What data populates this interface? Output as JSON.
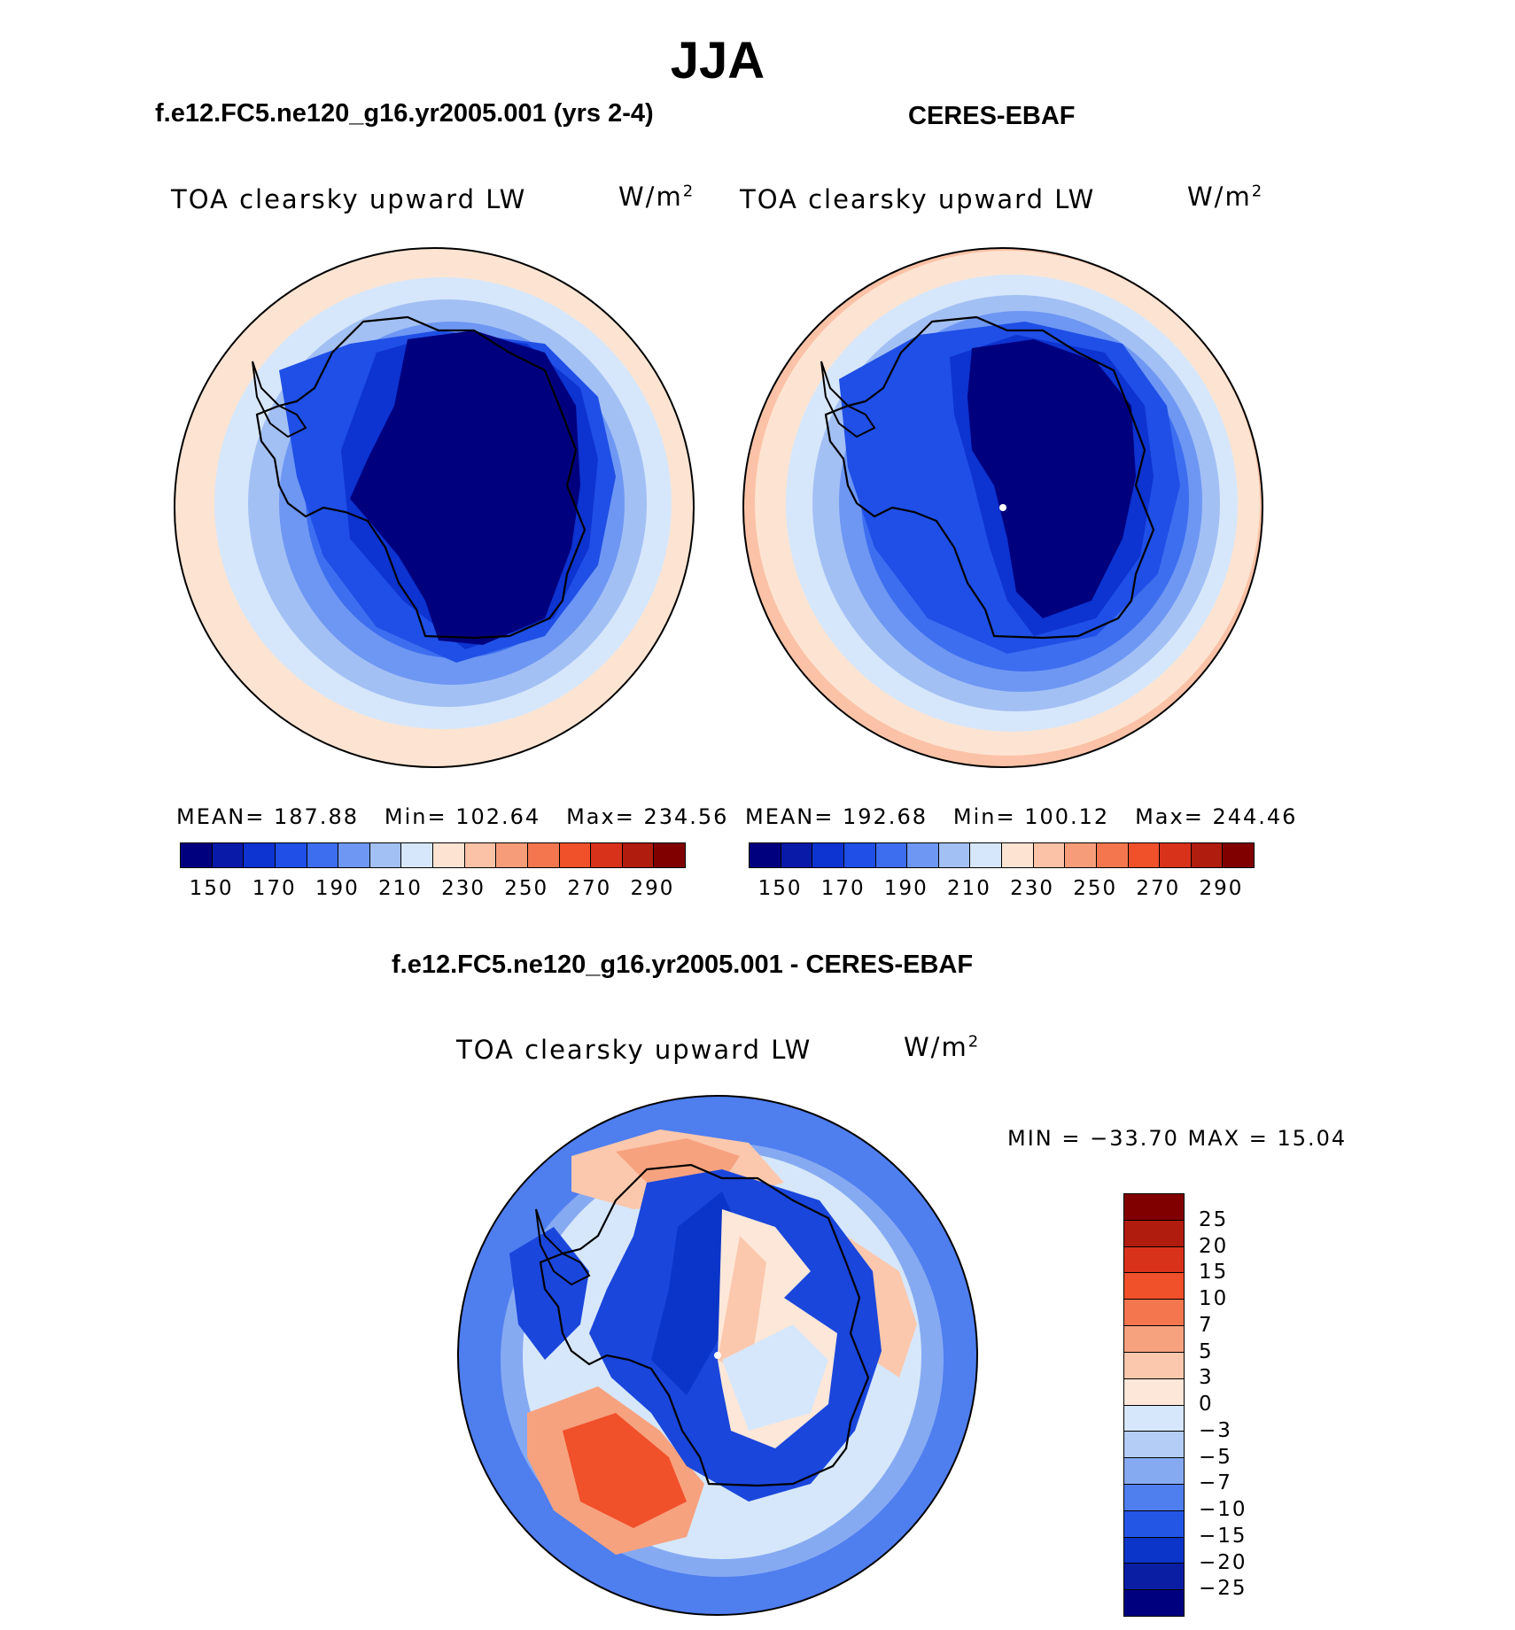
{
  "figure": {
    "title": "JJA",
    "season": "JJA"
  },
  "panels": [
    {
      "id": "model",
      "case_title": "f.e12.FC5.ne120_g16.yr2005.001 (yrs 2-4)",
      "variable": "TOA clearsky upward LW",
      "units": "W/m",
      "units_sup": "2",
      "stats": {
        "mean_label": "MEAN=",
        "mean": "187.88",
        "min_label": "Min=",
        "min": "102.64",
        "max_label": "Max=",
        "max": "234.56"
      }
    },
    {
      "id": "obs",
      "case_title": "CERES-EBAF",
      "variable": "TOA clearsky upward LW",
      "units": "W/m",
      "units_sup": "2",
      "stats": {
        "mean_label": "MEAN=",
        "mean": "192.68",
        "min_label": "Min=",
        "min": "100.12",
        "max_label": "Max=",
        "max": "244.46"
      }
    },
    {
      "id": "diff",
      "case_title": "f.e12.FC5.ne120_g16.yr2005.001 - CERES-EBAF",
      "variable": "TOA clearsky upward LW",
      "units": "W/m",
      "units_sup": "2",
      "minmax_text": "MIN = −33.70 MAX =  15.04"
    }
  ],
  "chart_data": [
    {
      "type": "heatmap",
      "projection": "south-polar stereographic",
      "title": "f.e12.FC5.ne120_g16.yr2005.001 (yrs 2-4)",
      "variable": "TOA clearsky upward LW",
      "units": "W/m^2",
      "mean": 187.88,
      "min": 102.64,
      "max": 234.56,
      "colorbar": {
        "orientation": "horizontal",
        "tick_labels": [
          "150",
          "170",
          "190",
          "210",
          "230",
          "250",
          "270",
          "290"
        ],
        "levels": [
          140,
          150,
          160,
          170,
          180,
          190,
          200,
          210,
          220,
          230,
          240,
          250,
          260,
          270,
          280,
          290,
          300
        ],
        "colors": [
          "#00007f",
          "#0a1aa8",
          "#0d33d0",
          "#1f4fe6",
          "#3d6ef0",
          "#6e97f3",
          "#a3c0f5",
          "#d6e7fb",
          "#fde4d2",
          "#fbc2a7",
          "#f79c79",
          "#f3764e",
          "#f0502a",
          "#d8321a",
          "#b01c0d",
          "#800000"
        ]
      }
    },
    {
      "type": "heatmap",
      "projection": "south-polar stereographic",
      "title": "CERES-EBAF",
      "variable": "TOA clearsky upward LW",
      "units": "W/m^2",
      "mean": 192.68,
      "min": 100.12,
      "max": 244.46,
      "colorbar": {
        "orientation": "horizontal",
        "tick_labels": [
          "150",
          "170",
          "190",
          "210",
          "230",
          "250",
          "270",
          "290"
        ],
        "levels": [
          140,
          150,
          160,
          170,
          180,
          190,
          200,
          210,
          220,
          230,
          240,
          250,
          260,
          270,
          280,
          290,
          300
        ],
        "colors": [
          "#00007f",
          "#0a1aa8",
          "#0d33d0",
          "#1f4fe6",
          "#3d6ef0",
          "#6e97f3",
          "#a3c0f5",
          "#d6e7fb",
          "#fde4d2",
          "#fbc2a7",
          "#f79c79",
          "#f3764e",
          "#f0502a",
          "#d8321a",
          "#b01c0d",
          "#800000"
        ]
      }
    },
    {
      "type": "heatmap",
      "projection": "south-polar stereographic",
      "title": "f.e12.FC5.ne120_g16.yr2005.001 - CERES-EBAF",
      "variable": "TOA clearsky upward LW",
      "units": "W/m^2",
      "min": -33.7,
      "max": 15.04,
      "colorbar": {
        "orientation": "vertical",
        "tick_labels": [
          "25",
          "20",
          "15",
          "10",
          "7",
          "5",
          "3",
          "0",
          "−3",
          "−5",
          "−7",
          "−10",
          "−15",
          "−20",
          "−25"
        ],
        "colors": [
          "#800000",
          "#b01c0d",
          "#d8321a",
          "#f0502a",
          "#f3764e",
          "#f7a27f",
          "#fbc8ad",
          "#fde7d8",
          "#d6e7fb",
          "#b3cdf6",
          "#86aaf2",
          "#4f7eef",
          "#2356e5",
          "#0b35c8",
          "#0a1ea4",
          "#00007f"
        ]
      }
    }
  ]
}
